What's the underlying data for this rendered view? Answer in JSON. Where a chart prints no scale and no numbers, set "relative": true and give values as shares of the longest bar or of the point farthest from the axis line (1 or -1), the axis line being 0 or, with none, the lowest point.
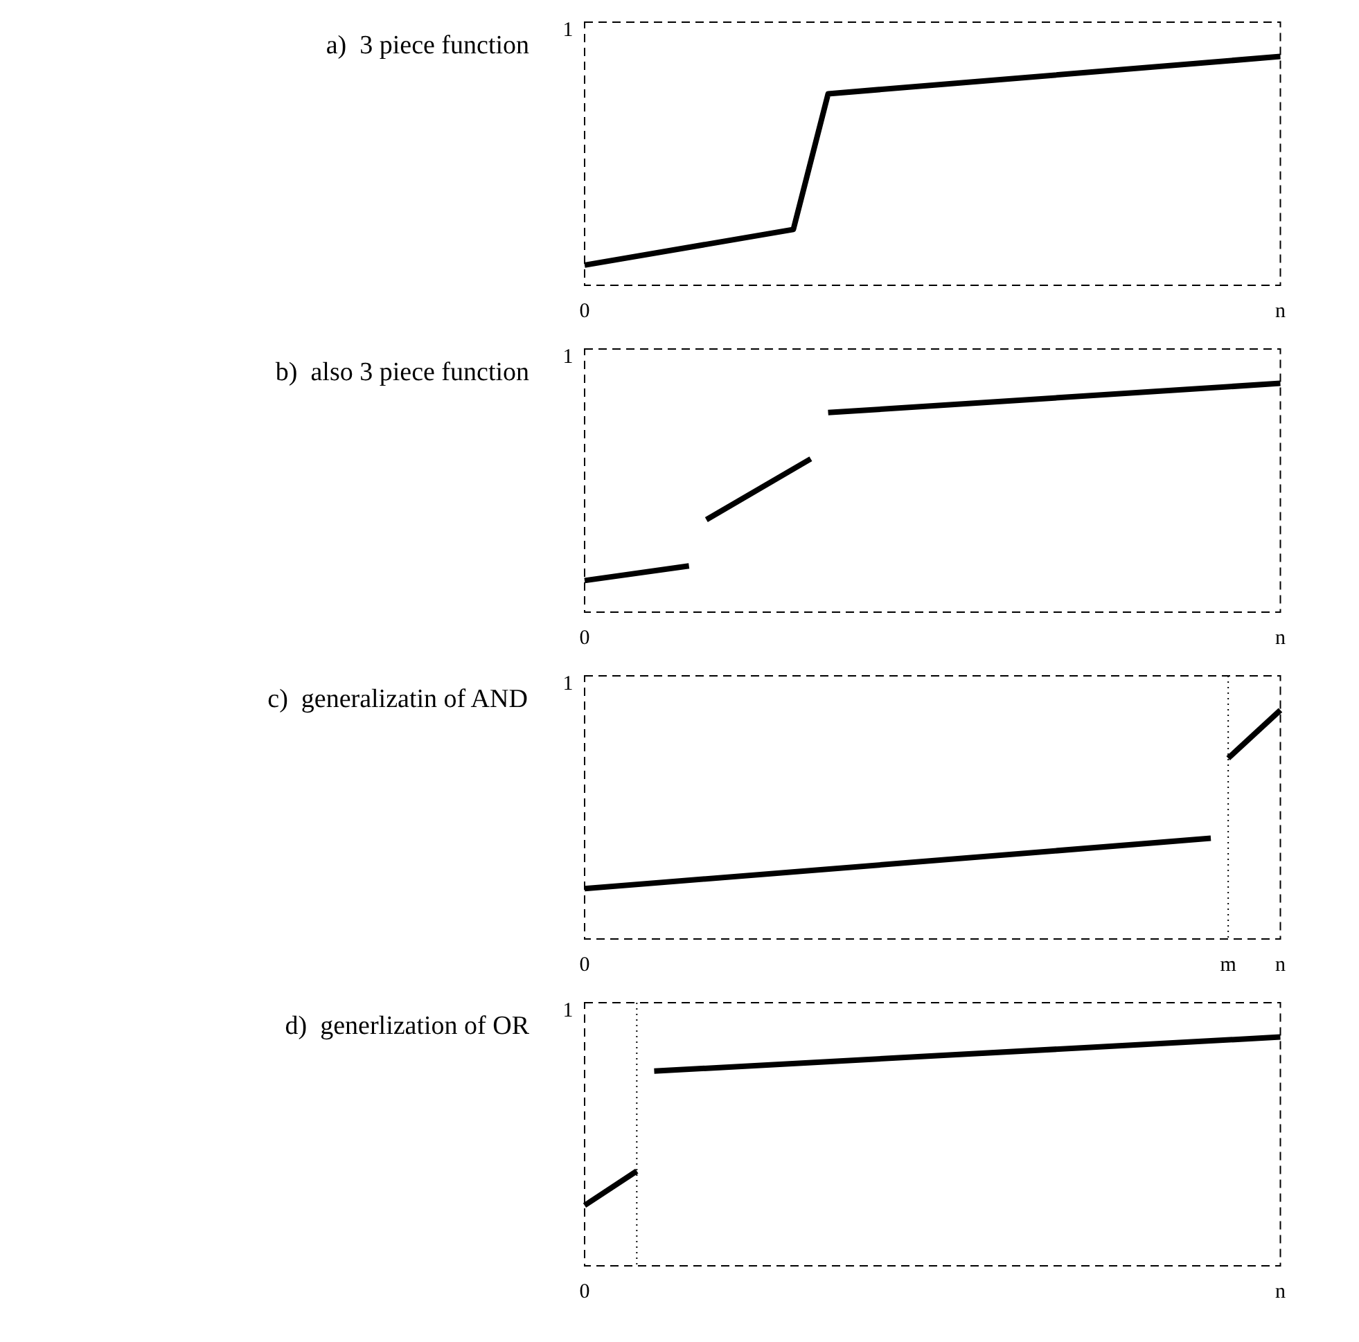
{
  "chart_data": [
    {
      "type": "line",
      "title": "a)  3 piece function",
      "relative": true,
      "marker": "none",
      "line_style": "solid",
      "annotations": [
        "1"
      ],
      "categories": [
        "0",
        null,
        null,
        null,
        null,
        null,
        null,
        null,
        null,
        null,
        null,
        null,
        null,
        null,
        null,
        null,
        null,
        null,
        null,
        null,
        null,
        null,
        null,
        null,
        null,
        null,
        null,
        null,
        null,
        null,
        null,
        null,
        null,
        null,
        null,
        null,
        null,
        null,
        null,
        null,
        "n"
      ],
      "series": [
        {
          "color": "#000000",
          "values": [
            0.088,
            null,
            null,
            null,
            null,
            null,
            null,
            null,
            null,
            null,
            null,
            null,
            0.244,
            null,
            0.837,
            null,
            null,
            null,
            null,
            null,
            null,
            null,
            null,
            null,
            null,
            null,
            null,
            null,
            null,
            null,
            null,
            null,
            null,
            null,
            null,
            null,
            null,
            null,
            null,
            null,
            1
          ]
        }
      ]
    },
    {
      "type": "line",
      "title": "b)  also 3 piece function",
      "relative": true,
      "marker": "none",
      "line_style": "solid",
      "annotations": [
        "1"
      ],
      "categories": [
        "0",
        null,
        null,
        null,
        null,
        null,
        null,
        null,
        null,
        null,
        null,
        null,
        null,
        null,
        null,
        null,
        null,
        null,
        null,
        null,
        null,
        null,
        null,
        null,
        null,
        null,
        null,
        null,
        null,
        null,
        null,
        null,
        null,
        null,
        null,
        null,
        null,
        null,
        null,
        null,
        "n"
      ],
      "series": [
        {
          "color": "#000000",
          "values": [
            0.138,
            null,
            null,
            null,
            null,
            null,
            0.202,
            null,
            null,
            null,
            null,
            null,
            null,
            null,
            null,
            null,
            null,
            null,
            null,
            null,
            null,
            null,
            null,
            null,
            null,
            null,
            null,
            null,
            null,
            null,
            null,
            null,
            null,
            null,
            null,
            null,
            null,
            null,
            null,
            null,
            null
          ]
        },
        {
          "color": "#000000",
          "values": [
            null,
            null,
            null,
            null,
            null,
            null,
            null,
            0.404,
            null,
            null,
            null,
            null,
            null,
            0.67,
            null,
            null,
            null,
            null,
            null,
            null,
            null,
            null,
            null,
            null,
            null,
            null,
            null,
            null,
            null,
            null,
            null,
            null,
            null,
            null,
            null,
            null,
            null,
            null,
            null,
            null,
            null
          ]
        },
        {
          "color": "#000000",
          "values": [
            null,
            null,
            null,
            null,
            null,
            null,
            null,
            null,
            null,
            null,
            null,
            null,
            null,
            null,
            0.872,
            null,
            null,
            null,
            null,
            null,
            null,
            null,
            null,
            null,
            null,
            null,
            null,
            null,
            null,
            null,
            null,
            null,
            null,
            null,
            null,
            null,
            null,
            null,
            null,
            null,
            1
          ]
        }
      ]
    },
    {
      "type": "line",
      "title": "c)  generalizatin of AND",
      "relative": true,
      "marker": "none",
      "line_style": "solid",
      "annotations": [
        "1"
      ],
      "categories": [
        "0",
        null,
        null,
        null,
        null,
        null,
        null,
        null,
        null,
        null,
        null,
        null,
        null,
        null,
        null,
        null,
        null,
        null,
        null,
        null,
        null,
        null,
        null,
        null,
        null,
        null,
        null,
        null,
        null,
        null,
        null,
        null,
        null,
        null,
        null,
        null,
        null,
        "m",
        null,
        null,
        "n"
      ],
      "ref_lines": [
        {
          "axis": "x",
          "value": "m",
          "line_style": "dotted"
        }
      ],
      "series": [
        {
          "color": "#000000",
          "values": [
            0.22,
            null,
            null,
            null,
            null,
            null,
            null,
            null,
            null,
            null,
            null,
            null,
            null,
            null,
            null,
            null,
            null,
            null,
            null,
            null,
            null,
            null,
            null,
            null,
            null,
            null,
            null,
            null,
            null,
            null,
            null,
            null,
            null,
            null,
            null,
            null,
            0.44,
            null,
            null,
            null,
            null
          ]
        },
        {
          "color": "#000000",
          "values": [
            null,
            null,
            null,
            null,
            null,
            null,
            null,
            null,
            null,
            null,
            null,
            null,
            null,
            null,
            null,
            null,
            null,
            null,
            null,
            null,
            null,
            null,
            null,
            null,
            null,
            null,
            null,
            null,
            null,
            null,
            null,
            null,
            null,
            null,
            null,
            null,
            null,
            0.79,
            null,
            null,
            1
          ]
        }
      ]
    },
    {
      "type": "line",
      "title": "d)  generlization of OR",
      "relative": true,
      "marker": "none",
      "line_style": "solid",
      "annotations": [
        "1"
      ],
      "categories": [
        "0",
        null,
        null,
        null,
        null,
        null,
        null,
        null,
        null,
        null,
        null,
        null,
        null,
        null,
        null,
        null,
        null,
        null,
        null,
        null,
        null,
        null,
        null,
        null,
        null,
        null,
        null,
        null,
        null,
        null,
        null,
        null,
        null,
        null,
        null,
        null,
        null,
        null,
        null,
        null,
        "n"
      ],
      "series": [
        {
          "color": "#000000",
          "values": [
            0.264,
            null,
            null,
            0.414,
            null,
            null,
            null,
            null,
            null,
            null,
            null,
            null,
            null,
            null,
            null,
            null,
            null,
            null,
            null,
            null,
            null,
            null,
            null,
            null,
            null,
            null,
            null,
            null,
            null,
            null,
            null,
            null,
            null,
            null,
            null,
            null,
            null,
            null,
            null,
            null,
            null
          ]
        },
        {
          "color": "#000000",
          "values": [
            null,
            null,
            null,
            null,
            0.851,
            null,
            null,
            null,
            null,
            null,
            null,
            null,
            null,
            null,
            null,
            null,
            null,
            null,
            null,
            null,
            null,
            null,
            null,
            null,
            null,
            null,
            null,
            null,
            null,
            null,
            null,
            null,
            null,
            null,
            null,
            null,
            null,
            null,
            null,
            null,
            1
          ]
        }
      ]
    }
  ]
}
